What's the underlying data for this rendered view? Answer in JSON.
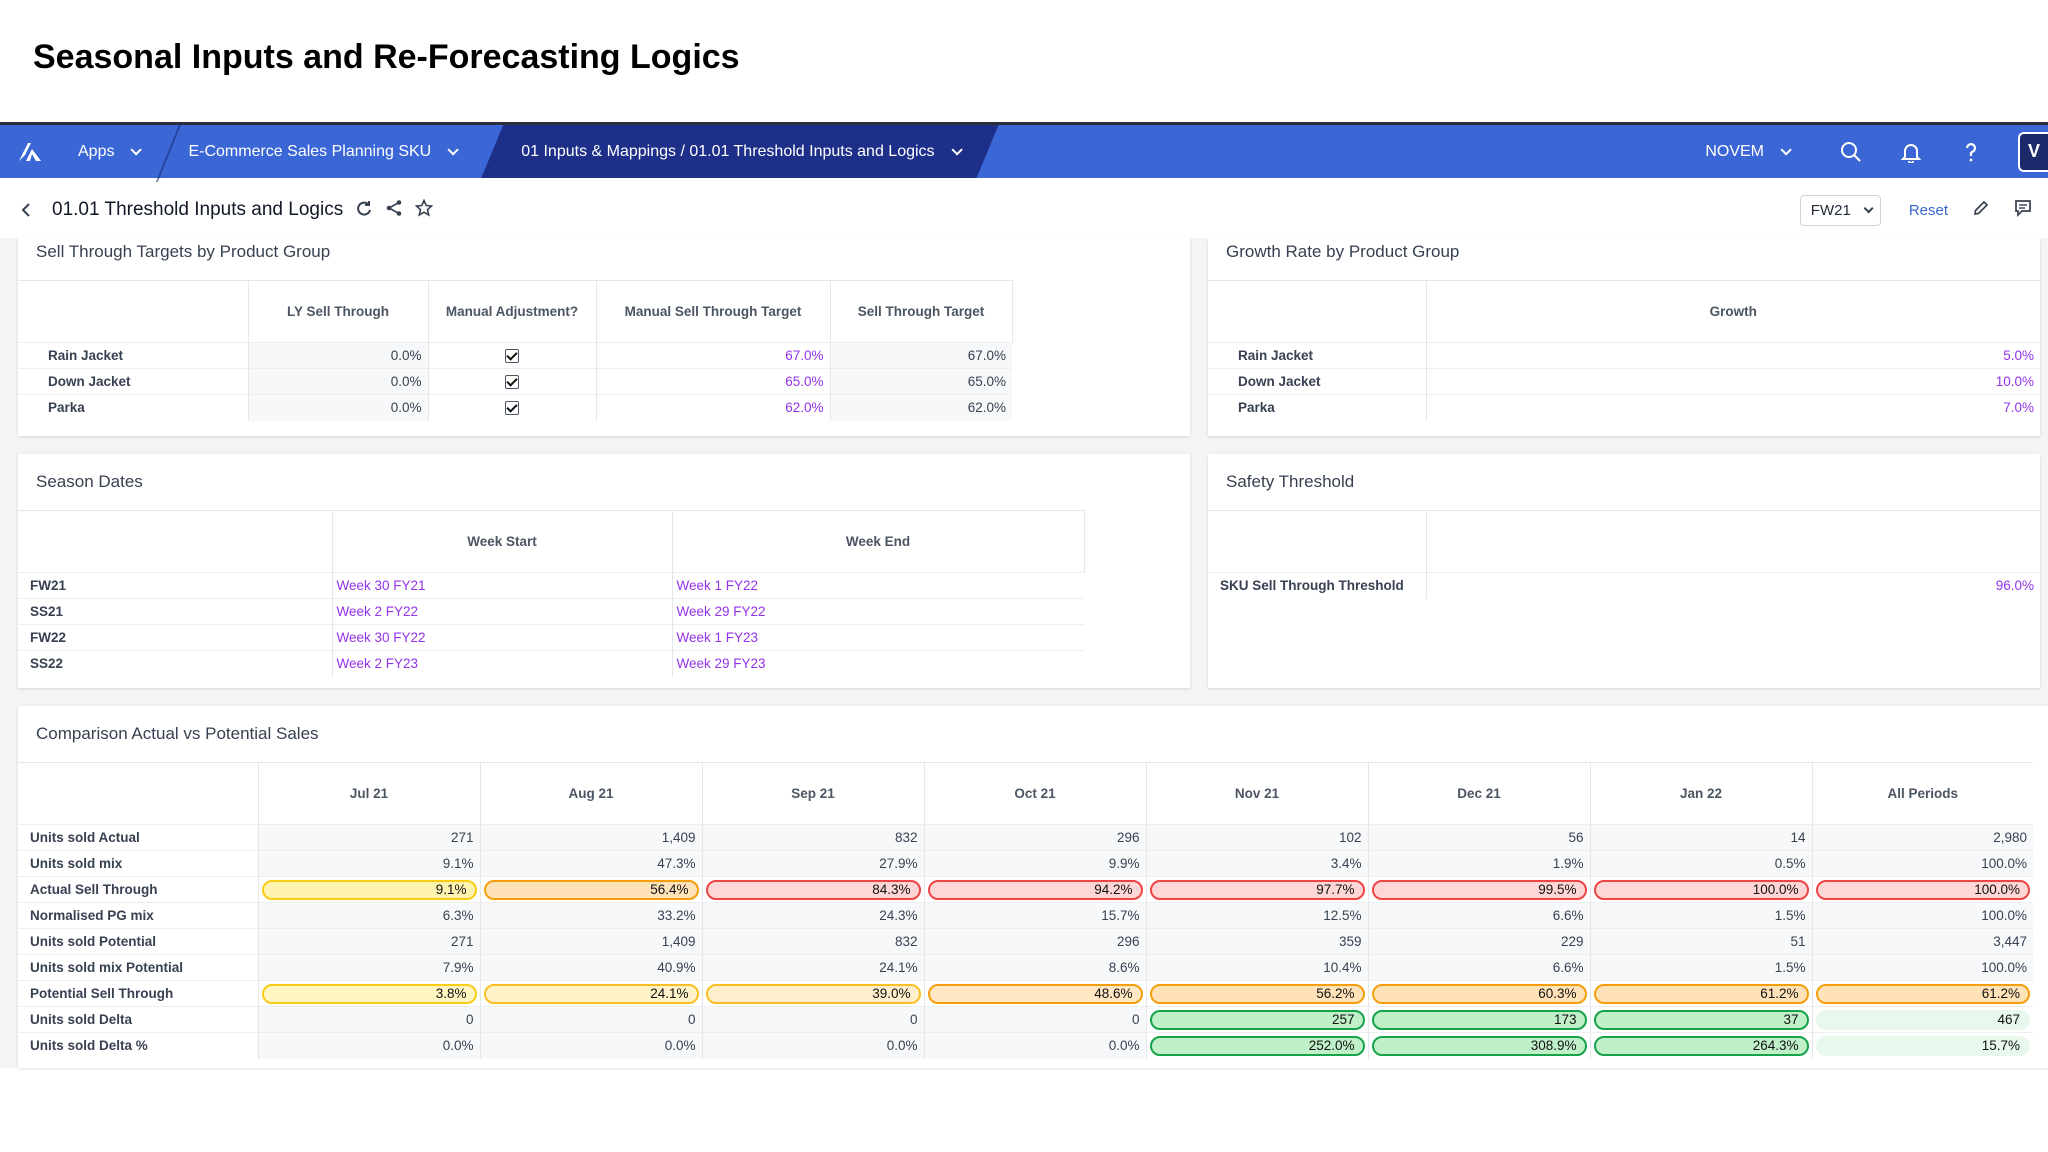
{
  "slide_title": "Seasonal Inputs and Re-Forecasting Logics",
  "nav": {
    "apps": "Apps",
    "app_name": "E-Commerce Sales Planning SKU",
    "breadcrumb": "01 Inputs & Mappings / 01.01 Threshold Inputs and Logics",
    "user": "NOVEM",
    "avatar": "V"
  },
  "page": {
    "title": "01.01 Threshold Inputs and Logics",
    "period": "FW21",
    "reset": "Reset"
  },
  "sell_through": {
    "title": "Sell Through Targets by Product Group",
    "headers": [
      "LY Sell Through",
      "Manual Adjustment?",
      "Manual Sell Through Target",
      "Sell Through Target"
    ],
    "rows": [
      {
        "label": "Rain Jacket",
        "ly": "0.0%",
        "manual": true,
        "manual_target": "67.0%",
        "target": "67.0%"
      },
      {
        "label": "Down Jacket",
        "ly": "0.0%",
        "manual": true,
        "manual_target": "65.0%",
        "target": "65.0%"
      },
      {
        "label": "Parka",
        "ly": "0.0%",
        "manual": true,
        "manual_target": "62.0%",
        "target": "62.0%"
      }
    ]
  },
  "growth": {
    "title": "Growth Rate by Product Group",
    "header": "Growth",
    "rows": [
      {
        "label": "Rain Jacket",
        "value": "5.0%"
      },
      {
        "label": "Down Jacket",
        "value": "10.0%"
      },
      {
        "label": "Parka",
        "value": "7.0%"
      }
    ]
  },
  "season_dates": {
    "title": "Season Dates",
    "headers": [
      "Week Start",
      "Week End"
    ],
    "rows": [
      {
        "label": "FW21",
        "start": "Week 30 FY21",
        "end": "Week 1 FY22"
      },
      {
        "label": "SS21",
        "start": "Week 2 FY22",
        "end": "Week 29 FY22"
      },
      {
        "label": "FW22",
        "start": "Week 30 FY22",
        "end": "Week 1 FY23"
      },
      {
        "label": "SS22",
        "start": "Week 2 FY23",
        "end": "Week 29 FY23"
      }
    ]
  },
  "safety": {
    "title": "Safety Threshold",
    "label": "SKU Sell Through Threshold",
    "value": "96.0%"
  },
  "comparison": {
    "title": "Comparison Actual vs Potential Sales",
    "columns": [
      "Jul 21",
      "Aug 21",
      "Sep 21",
      "Oct 21",
      "Nov 21",
      "Dec 21",
      "Jan 22",
      "All Periods"
    ],
    "rows": [
      {
        "label": "Units sold Actual",
        "values": [
          "271",
          "1,409",
          "832",
          "296",
          "102",
          "56",
          "14",
          "2,980"
        ]
      },
      {
        "label": "Units sold mix",
        "values": [
          "9.1%",
          "47.3%",
          "27.9%",
          "9.9%",
          "3.4%",
          "1.9%",
          "0.5%",
          "100.0%"
        ]
      },
      {
        "label": "Actual Sell Through",
        "values": [
          "9.1%",
          "56.4%",
          "84.3%",
          "94.2%",
          "97.7%",
          "99.5%",
          "100.0%",
          "100.0%"
        ],
        "heat": [
          "#fff3b0",
          "#ffe2b8",
          "#ffd6d6",
          "#ffd6d6",
          "#ffd6d6",
          "#ffd6d6",
          "#ffd6d6",
          "#ffd6d6"
        ],
        "border": [
          "#facc15",
          "#f59e0b",
          "#ef4444",
          "#ef4444",
          "#ef4444",
          "#ef4444",
          "#ef4444",
          "#ef4444"
        ]
      },
      {
        "label": "Normalised PG mix",
        "values": [
          "6.3%",
          "33.2%",
          "24.3%",
          "15.7%",
          "12.5%",
          "6.6%",
          "1.5%",
          "100.0%"
        ]
      },
      {
        "label": "Units sold Potential",
        "values": [
          "271",
          "1,409",
          "832",
          "296",
          "359",
          "229",
          "51",
          "3,447"
        ]
      },
      {
        "label": "Units sold mix Potential",
        "values": [
          "7.9%",
          "40.9%",
          "24.1%",
          "8.6%",
          "10.4%",
          "6.6%",
          "1.5%",
          "100.0%"
        ]
      },
      {
        "label": "Potential Sell Through",
        "values": [
          "3.8%",
          "24.1%",
          "39.0%",
          "48.6%",
          "56.2%",
          "60.3%",
          "61.2%",
          "61.2%"
        ],
        "heat": [
          "#fff6c2",
          "#fff1c8",
          "#ffefcc",
          "#ffe7c4",
          "#ffe2b8",
          "#ffe2b8",
          "#ffe2b8",
          "#ffe2b8"
        ],
        "border": [
          "#facc15",
          "#fbbf24",
          "#fbbf24",
          "#f59e0b",
          "#f59e0b",
          "#f59e0b",
          "#f59e0b",
          "#f59e0b"
        ]
      },
      {
        "label": "Units sold Delta",
        "values": [
          "0",
          "0",
          "0",
          "0",
          "257",
          "173",
          "37",
          "467"
        ],
        "heat": [
          null,
          null,
          null,
          null,
          "#bff0c8",
          "#bff0c8",
          "#bff0c8",
          "#e9f8ec"
        ],
        "border": [
          null,
          null,
          null,
          null,
          "#16a34a",
          "#16a34a",
          "#16a34a",
          "#e9f8ec"
        ]
      },
      {
        "label": "Units sold Delta %",
        "values": [
          "0.0%",
          "0.0%",
          "0.0%",
          "0.0%",
          "252.0%",
          "308.9%",
          "264.3%",
          "15.7%"
        ],
        "heat": [
          null,
          null,
          null,
          null,
          "#bff0c8",
          "#bff0c8",
          "#bff0c8",
          "#e9f8ec"
        ],
        "border": [
          null,
          null,
          null,
          null,
          "#16a34a",
          "#16a34a",
          "#16a34a",
          "#e9f8ec"
        ]
      }
    ]
  }
}
